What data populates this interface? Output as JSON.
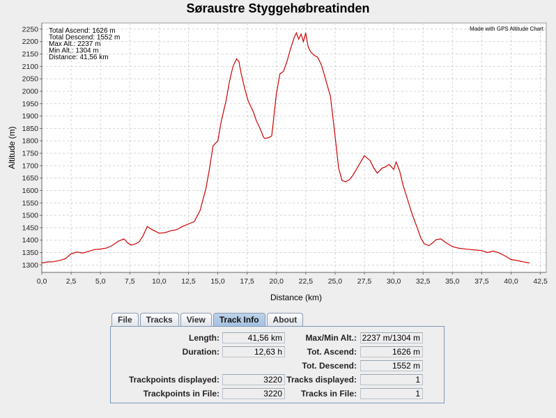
{
  "chart_data": {
    "type": "line",
    "title": "Søraustre Styggehøbreatinden",
    "xlabel": "Distance (km)",
    "ylabel": "Altitude (m)",
    "xlim": [
      0,
      43
    ],
    "ylim": [
      1270,
      2275
    ],
    "x_ticks": [
      "0,0",
      "2,5",
      "5,0",
      "7,5",
      "10,0",
      "12,5",
      "15,0",
      "17,5",
      "20,0",
      "22,5",
      "25,0",
      "27,5",
      "30,0",
      "32,5",
      "35,0",
      "37,5",
      "40,0",
      "42,5"
    ],
    "x_tick_values": [
      0,
      2.5,
      5,
      7.5,
      10,
      12.5,
      15,
      17.5,
      20,
      22.5,
      25,
      27.5,
      30,
      32.5,
      35,
      37.5,
      40,
      42.5
    ],
    "y_ticks": [
      1300,
      1350,
      1400,
      1450,
      1500,
      1550,
      1600,
      1650,
      1700,
      1750,
      1800,
      1850,
      1900,
      1950,
      2000,
      2050,
      2100,
      2150,
      2200,
      2250
    ],
    "grid": true,
    "line_color": "#cc0000",
    "stats_lines": [
      "Total Ascend: 1626 m",
      "Total Descend: 1552 m",
      "Max Alt.: 2237 m",
      "Min Alt.: 1304 m",
      "Distance: 41,56 km"
    ],
    "credit": "Made with GPS Altitude Chart",
    "series": [
      {
        "x": [
          0.0,
          0.5,
          1.0,
          1.5,
          2.0,
          2.5,
          3.0,
          3.5,
          4.0,
          4.5,
          5.0,
          5.5,
          6.0,
          6.5,
          7.0,
          7.3,
          7.6,
          8.0,
          8.3,
          8.6,
          9.0,
          9.3,
          9.7,
          10.0,
          10.5,
          11.0,
          11.5,
          12.0,
          12.5,
          13.0,
          13.5,
          14.0,
          14.3,
          14.6,
          15.0,
          15.3,
          15.7,
          16.0,
          16.3,
          16.6,
          16.8,
          17.0,
          17.3,
          17.6,
          18.0,
          18.3,
          18.6,
          18.9,
          19.0,
          19.3,
          19.6,
          20.0,
          20.3,
          20.6,
          20.9,
          21.2,
          21.5,
          21.7,
          21.9,
          22.1,
          22.3,
          22.5,
          22.7,
          22.9,
          23.2,
          23.5,
          23.8,
          24.0,
          24.3,
          24.6,
          25.0,
          25.3,
          25.6,
          25.9,
          26.2,
          26.5,
          27.0,
          27.5,
          28.0,
          28.3,
          28.6,
          29.0,
          29.3,
          29.6,
          30.0,
          30.2,
          30.5,
          30.8,
          31.0,
          31.3,
          31.6,
          32.0,
          32.3,
          32.6,
          33.0,
          33.3,
          33.6,
          34.0,
          34.3,
          34.6,
          35.0,
          35.5,
          36.0,
          36.5,
          37.0,
          37.5,
          38.0,
          38.5,
          39.0,
          39.5,
          40.0,
          40.5,
          41.0,
          41.56
        ],
        "y": [
          1308,
          1312,
          1313,
          1318,
          1325,
          1345,
          1352,
          1348,
          1355,
          1362,
          1364,
          1368,
          1378,
          1395,
          1405,
          1390,
          1380,
          1385,
          1393,
          1415,
          1455,
          1445,
          1435,
          1428,
          1430,
          1438,
          1442,
          1455,
          1465,
          1475,
          1520,
          1610,
          1690,
          1780,
          1800,
          1880,
          1960,
          2040,
          2100,
          2130,
          2120,
          2070,
          2010,
          1960,
          1920,
          1880,
          1850,
          1815,
          1810,
          1812,
          1820,
          1990,
          2070,
          2080,
          2120,
          2170,
          2215,
          2235,
          2210,
          2230,
          2200,
          2235,
          2180,
          2160,
          2145,
          2138,
          2110,
          2080,
          2030,
          1980,
          1820,
          1690,
          1640,
          1635,
          1643,
          1660,
          1700,
          1740,
          1720,
          1690,
          1670,
          1690,
          1695,
          1705,
          1685,
          1715,
          1680,
          1620,
          1590,
          1545,
          1500,
          1450,
          1410,
          1385,
          1378,
          1388,
          1402,
          1405,
          1395,
          1385,
          1374,
          1368,
          1365,
          1362,
          1360,
          1358,
          1350,
          1356,
          1348,
          1336,
          1322,
          1318,
          1313,
          1308
        ]
      }
    ]
  },
  "tabs": [
    {
      "label": "File",
      "active": false
    },
    {
      "label": "Tracks",
      "active": false
    },
    {
      "label": "View",
      "active": false
    },
    {
      "label": "Track Info",
      "active": true
    },
    {
      "label": "About",
      "active": false
    }
  ],
  "track_info": {
    "length_label": "Length:",
    "length_value": "41,56 km",
    "duration_label": "Duration:",
    "duration_value": "12,63 h",
    "maxmin_label": "Max/Min Alt.:",
    "maxmin_value": "2237 m/1304 m",
    "ascend_label": "Tot. Ascend:",
    "ascend_value": "1626 m",
    "descend_label": "Tot. Descend:",
    "descend_value": "1552 m",
    "trackpoints_displayed_label": "Trackpoints displayed:",
    "trackpoints_displayed_value": "3220",
    "tracks_displayed_label": "Tracks displayed:",
    "tracks_displayed_value": "1",
    "trackpoints_file_label": "Trackpoints in File:",
    "trackpoints_file_value": "3220",
    "tracks_file_label": "Tracks in File:",
    "tracks_file_value": "1"
  }
}
